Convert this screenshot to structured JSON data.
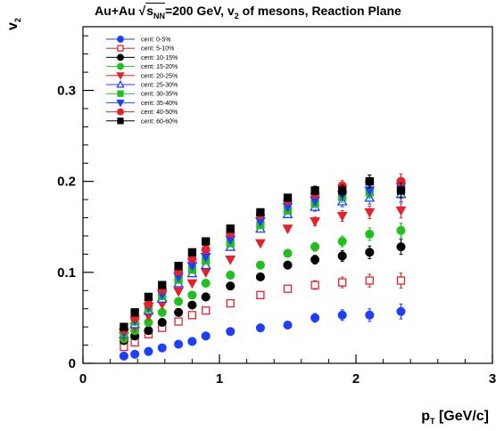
{
  "title": {
    "prefix": "Au+Au ",
    "sqrt_s": "s",
    "sqrt_sub": "NN",
    "middle": "=200 GeV, v",
    "v_sub": "2",
    "suffix": " of mesons, Reaction Plane"
  },
  "ylabel": {
    "main": "v",
    "sub": "2"
  },
  "xlabel": {
    "main": "p",
    "sub": "T",
    "unit": " [GeV/c]"
  },
  "chart_data": {
    "type": "scatter",
    "title": "Au+Au √sNN=200 GeV, v2 of mesons, Reaction Plane",
    "xlabel": "pT [GeV/c]",
    "ylabel": "v2",
    "xlim": [
      0,
      3
    ],
    "ylim": [
      0,
      0.37
    ],
    "xticks": [
      "0",
      "1",
      "2",
      "3"
    ],
    "yticks": [
      "0",
      "0.1",
      "0.2",
      "0.3"
    ],
    "legend_position": "top-left",
    "x": [
      0.3,
      0.38,
      0.48,
      0.58,
      0.7,
      0.8,
      0.9,
      1.08,
      1.3,
      1.5,
      1.7,
      1.9,
      2.1,
      2.33
    ],
    "series": [
      {
        "name": "cent: 0-5%",
        "color": "#1f3fff",
        "marker": "circle",
        "filled": true,
        "values": [
          0.008,
          0.01,
          0.013,
          0.017,
          0.021,
          0.024,
          0.03,
          0.035,
          0.039,
          0.042,
          0.05,
          0.053,
          0.053,
          0.057
        ]
      },
      {
        "name": "cent: 5-10%",
        "color": "#e8202a",
        "marker": "square",
        "filled": false,
        "values": [
          0.018,
          0.023,
          0.032,
          0.039,
          0.046,
          0.053,
          0.058,
          0.066,
          0.075,
          0.082,
          0.086,
          0.089,
          0.091,
          0.091
        ]
      },
      {
        "name": "cent: 10-15%",
        "color": "#000000",
        "marker": "circle",
        "filled": true,
        "values": [
          0.025,
          0.03,
          0.036,
          0.045,
          0.056,
          0.064,
          0.073,
          0.085,
          0.095,
          0.108,
          0.114,
          0.118,
          0.122,
          0.128
        ]
      },
      {
        "name": "cent: 15-20%",
        "color": "#22c01e",
        "marker": "circle",
        "filled": true,
        "values": [
          0.027,
          0.036,
          0.045,
          0.056,
          0.068,
          0.075,
          0.088,
          0.097,
          0.108,
          0.121,
          0.128,
          0.134,
          0.142,
          0.146
        ]
      },
      {
        "name": "cent: 20-25%",
        "color": "#e8202a",
        "marker": "triangle-down",
        "filled": true,
        "values": [
          0.03,
          0.04,
          0.052,
          0.065,
          0.079,
          0.088,
          0.1,
          0.114,
          0.132,
          0.148,
          0.156,
          0.162,
          0.166,
          0.168
        ]
      },
      {
        "name": "cent: 25-30%",
        "color": "#1f3fff",
        "marker": "triangle-up",
        "filled": false,
        "values": [
          0.032,
          0.043,
          0.058,
          0.071,
          0.088,
          0.099,
          0.108,
          0.128,
          0.148,
          0.164,
          0.172,
          0.178,
          0.182,
          0.186
        ]
      },
      {
        "name": "cent: 30-35%",
        "color": "#22c01e",
        "marker": "square",
        "filled": true,
        "values": [
          0.033,
          0.046,
          0.06,
          0.074,
          0.092,
          0.103,
          0.113,
          0.132,
          0.152,
          0.168,
          0.176,
          0.183,
          0.188,
          0.192
        ]
      },
      {
        "name": "cent: 35-40%",
        "color": "#1f3fff",
        "marker": "triangle-down",
        "filled": true,
        "values": [
          0.034,
          0.047,
          0.062,
          0.076,
          0.095,
          0.107,
          0.117,
          0.136,
          0.156,
          0.172,
          0.179,
          0.185,
          0.19,
          0.194
        ]
      },
      {
        "name": "cent: 40-50%",
        "color": "#e8202a",
        "marker": "circle",
        "filled": true,
        "values": [
          0.037,
          0.05,
          0.065,
          0.081,
          0.101,
          0.115,
          0.125,
          0.143,
          0.163,
          0.179,
          0.186,
          0.195,
          0.2,
          0.2
        ]
      },
      {
        "name": "cent: 60-60%",
        "color": "#000000",
        "marker": "square",
        "filled": true,
        "values": [
          0.04,
          0.056,
          0.073,
          0.086,
          0.107,
          0.122,
          0.134,
          0.148,
          0.166,
          0.182,
          0.19,
          0.19,
          0.2,
          0.19
        ]
      }
    ]
  }
}
